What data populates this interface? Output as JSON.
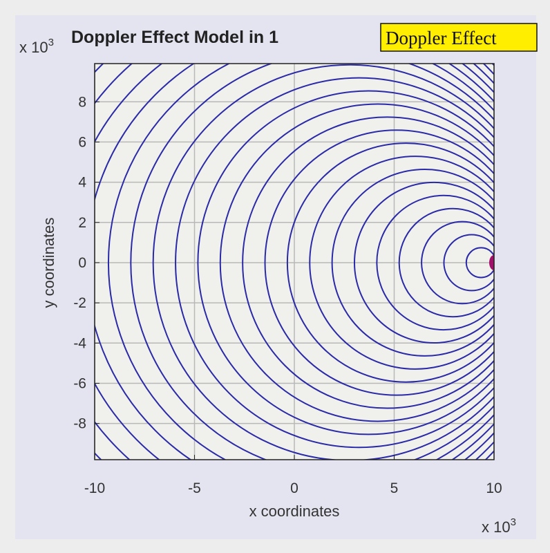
{
  "chart_data": {
    "type": "line",
    "title": "Doppler Effect Model in 1",
    "annotation": "Doppler Effect",
    "xlabel": "x coordinates",
    "ylabel": "y coordinates",
    "x_multiplier": "x 10",
    "y_multiplier": "x 10",
    "multiplier_exponent": "3",
    "xlim": [
      -10,
      10
    ],
    "ylim": [
      -9.8,
      9.9
    ],
    "xticks": [
      -10,
      -5,
      0,
      5,
      10
    ],
    "yticks": [
      -8,
      -6,
      -4,
      -2,
      0,
      2,
      4,
      6,
      8
    ],
    "xtick_labels": [
      "-10",
      "-5",
      "0",
      "5",
      "10"
    ],
    "ytick_labels": [
      "-8",
      "-6",
      "-4",
      "-2",
      "0",
      "2",
      "4",
      "6",
      "8"
    ],
    "grid": true,
    "wavefronts": {
      "description_units": "thousands",
      "center_y": 0,
      "centers_x": [
        9.35,
        8.88,
        8.41,
        7.94,
        7.47,
        7.0,
        6.53,
        6.06,
        5.59,
        5.12,
        4.65,
        4.18,
        3.71,
        3.24,
        2.77,
        2.3,
        1.83,
        1.36,
        0.89,
        0.42,
        -0.05,
        -0.52
      ],
      "radii": [
        0.74,
        1.39,
        2.04,
        2.69,
        3.34,
        3.99,
        4.64,
        5.29,
        5.94,
        6.59,
        7.24,
        7.89,
        8.54,
        9.19,
        9.84,
        10.49,
        11.14,
        11.79,
        12.44,
        13.09,
        13.74,
        14.39
      ]
    },
    "source": {
      "x": 10,
      "y": 0
    },
    "colors": {
      "wavefront": "#2a2aa8",
      "source": "#a0106a",
      "annotation_bg": "#ffee00",
      "plot_bg": "#f0f0ec",
      "figure_bg": "#e4e4f0",
      "grid": "#b8b8b8"
    }
  }
}
